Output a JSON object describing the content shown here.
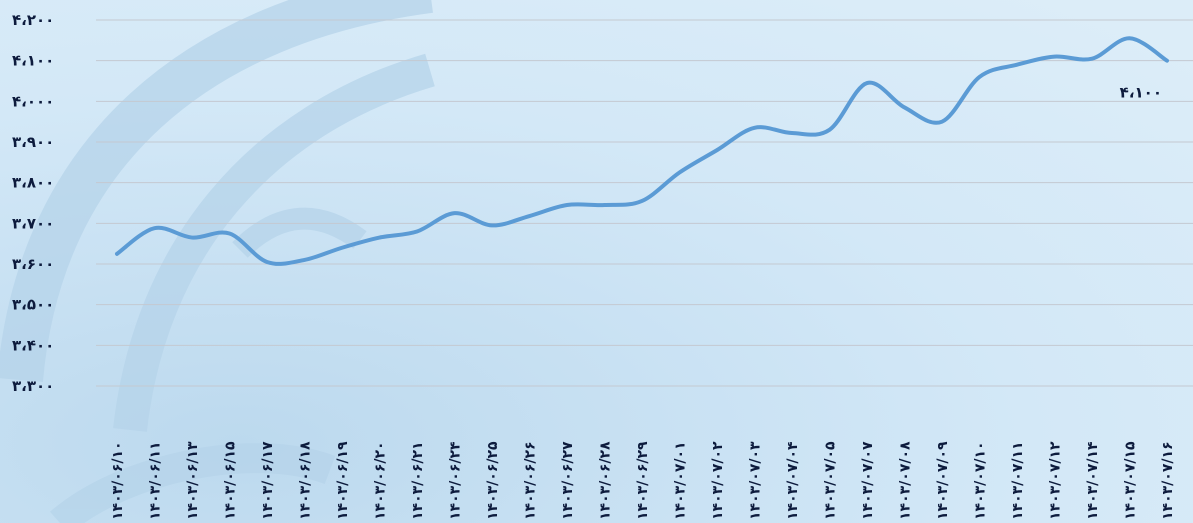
{
  "chart_data": {
    "type": "line",
    "title": "",
    "xlabel": "",
    "ylabel": "",
    "ylim": [
      3300,
      4200
    ],
    "grid": true,
    "yticks": [
      {
        "value": 4200,
        "label": "۴،۲۰۰"
      },
      {
        "value": 4100,
        "label": "۴،۱۰۰"
      },
      {
        "value": 4000,
        "label": "۴،۰۰۰"
      },
      {
        "value": 3900,
        "label": "۳،۹۰۰"
      },
      {
        "value": 3800,
        "label": "۳،۸۰۰"
      },
      {
        "value": 3700,
        "label": "۳،۷۰۰"
      },
      {
        "value": 3600,
        "label": "۳،۶۰۰"
      },
      {
        "value": 3500,
        "label": "۳،۵۰۰"
      },
      {
        "value": 3400,
        "label": "۳،۴۰۰"
      },
      {
        "value": 3300,
        "label": "۳،۳۰۰"
      }
    ],
    "categories": [
      "۱۴۰۳/۰۶/۱۰",
      "۱۴۰۳/۰۶/۱۱",
      "۱۴۰۳/۰۶/۱۳",
      "۱۴۰۳/۰۶/۱۵",
      "۱۴۰۳/۰۶/۱۷",
      "۱۴۰۳/۰۶/۱۸",
      "۱۴۰۳/۰۶/۱۹",
      "۱۴۰۳/۰۶/۲۰",
      "۱۴۰۳/۰۶/۲۱",
      "۱۴۰۳/۰۶/۲۴",
      "۱۴۰۳/۰۶/۲۵",
      "۱۴۰۳/۰۶/۲۶",
      "۱۴۰۳/۰۶/۲۷",
      "۱۴۰۳/۰۶/۲۸",
      "۱۴۰۳/۰۶/۲۹",
      "۱۴۰۳/۰۷/۰۱",
      "۱۴۰۳/۰۷/۰۲",
      "۱۴۰۳/۰۷/۰۳",
      "۱۴۰۳/۰۷/۰۴",
      "۱۴۰۳/۰۷/۰۵",
      "۱۴۰۳/۰۷/۰۷",
      "۱۴۰۳/۰۷/۰۸",
      "۱۴۰۳/۰۷/۰۹",
      "۱۴۰۳/۰۷/۱۰",
      "۱۴۰۳/۰۷/۱۱",
      "۱۴۰۳/۰۷/۱۲",
      "۱۴۰۳/۰۷/۱۴",
      "۱۴۰۳/۰۷/۱۵",
      "۱۴۰۳/۰۷/۱۶"
    ],
    "series": [
      {
        "color": "#5b9bd5",
        "values": [
          3625,
          3688,
          3665,
          3675,
          3605,
          3610,
          3640,
          3665,
          3680,
          3725,
          3695,
          3718,
          3745,
          3745,
          3755,
          3825,
          3880,
          3935,
          3922,
          3930,
          4045,
          3985,
          3950,
          4060,
          4090,
          4110,
          4105,
          4155,
          4100
        ]
      }
    ],
    "last_value_label": "۴،۱۰۰"
  }
}
